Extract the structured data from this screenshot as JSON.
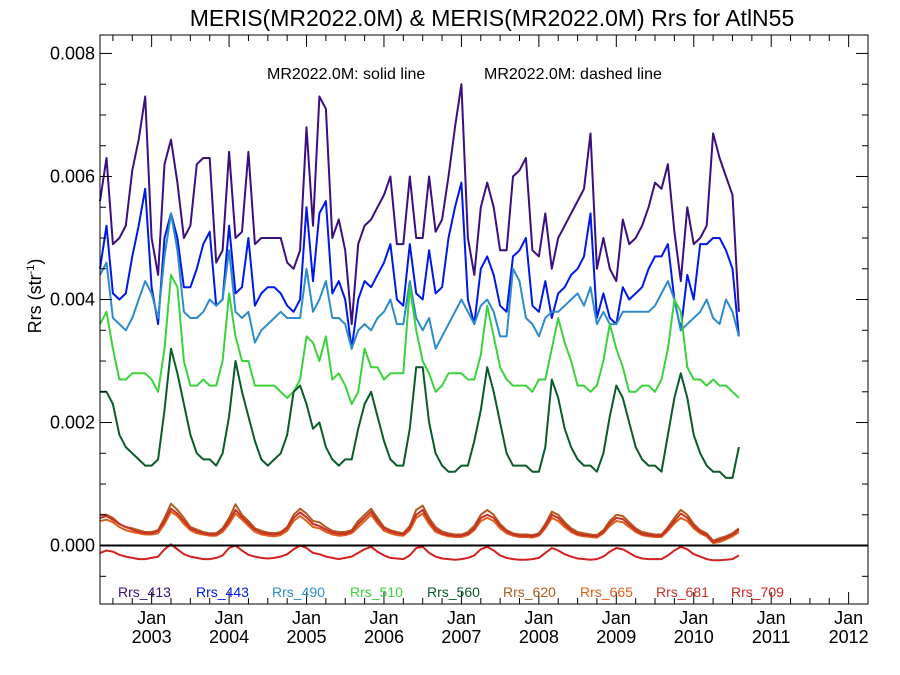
{
  "chart_data": {
    "type": "line",
    "title": "MERIS(MR2022.0M) & MERIS(MR2022.0M)  Rrs for AtlN55",
    "annotation_solid": "MR2022.0M: solid line",
    "annotation_dashed": "MR2022.0M: dashed line",
    "ylabel_main": "Rrs (str",
    "ylabel_sup": "-1",
    "ylabel_close": ")",
    "xlabel": "",
    "xlim": [
      "2002-05",
      "2012-04"
    ],
    "ylim": [
      -0.00095,
      0.0083
    ],
    "grid": false,
    "legend_position": "bottom",
    "x_tick_labels": [
      {
        "month": "Jan",
        "year": "2003",
        "date": "2003-01"
      },
      {
        "month": "Jan",
        "year": "2004",
        "date": "2004-01"
      },
      {
        "month": "Jan",
        "year": "2005",
        "date": "2005-01"
      },
      {
        "month": "Jan",
        "year": "2006",
        "date": "2006-01"
      },
      {
        "month": "Jan",
        "year": "2007",
        "date": "2007-01"
      },
      {
        "month": "Jan",
        "year": "2008",
        "date": "2008-01"
      },
      {
        "month": "Jan",
        "year": "2009",
        "date": "2009-01"
      },
      {
        "month": "Jan",
        "year": "2010",
        "date": "2010-01"
      },
      {
        "month": "Jan",
        "year": "2011",
        "date": "2011-01"
      },
      {
        "month": "Jan",
        "year": "2012",
        "date": "2012-01"
      }
    ],
    "y_tick_labels": [
      "0.000",
      "0.002",
      "0.004",
      "0.006",
      "0.008"
    ],
    "y_ticks": [
      0,
      0.002,
      0.004,
      0.006,
      0.008
    ],
    "x_start": "2002-05",
    "series": [
      {
        "name": "Rrs_413",
        "color": "#3b0f80",
        "values": [
          0.0056,
          0.0063,
          0.0049,
          0.005,
          0.0052,
          0.0061,
          0.0066,
          0.0073,
          0.005,
          0.0044,
          0.0062,
          0.0066,
          0.0059,
          0.005,
          0.0052,
          0.0062,
          0.0063,
          0.0063,
          0.0046,
          0.0048,
          0.0064,
          0.005,
          0.0051,
          0.0064,
          0.0049,
          0.005,
          0.005,
          0.005,
          0.005,
          0.0046,
          0.0045,
          0.0048,
          0.0068,
          0.0052,
          0.0073,
          0.0071,
          0.005,
          0.0053,
          0.0048,
          0.0036,
          0.0049,
          0.0052,
          0.0053,
          0.0055,
          0.0057,
          0.006,
          0.0049,
          0.0049,
          0.006,
          0.005,
          0.005,
          0.006,
          0.0051,
          0.0053,
          0.006,
          0.0068,
          0.0075,
          0.005,
          0.0044,
          0.0055,
          0.0059,
          0.0055,
          0.0048,
          0.0048,
          0.006,
          0.0061,
          0.0063,
          0.0048,
          0.0047,
          0.0054,
          0.0045,
          0.005,
          0.0052,
          0.0054,
          0.0056,
          0.0058,
          0.0067,
          0.0045,
          0.005,
          0.0045,
          0.0043,
          0.0053,
          0.0049,
          0.005,
          0.0052,
          0.0055,
          0.0059,
          0.0058,
          0.0062,
          0.0051,
          0.0043,
          0.0055,
          0.0049,
          0.005,
          0.0052,
          0.0067,
          0.0063,
          0.006,
          0.0057,
          0.0038
        ]
      },
      {
        "name": "Rrs_443",
        "color": "#0018e8",
        "values": [
          0.0045,
          0.0052,
          0.0041,
          0.004,
          0.0041,
          0.0047,
          0.0052,
          0.0058,
          0.0042,
          0.0036,
          0.005,
          0.0054,
          0.005,
          0.0042,
          0.0042,
          0.0045,
          0.0049,
          0.0051,
          0.0039,
          0.004,
          0.0052,
          0.0041,
          0.0042,
          0.005,
          0.0039,
          0.0041,
          0.0042,
          0.0042,
          0.0041,
          0.0039,
          0.0038,
          0.004,
          0.0055,
          0.0043,
          0.0054,
          0.0056,
          0.0041,
          0.0043,
          0.004,
          0.0032,
          0.004,
          0.0043,
          0.0042,
          0.0044,
          0.0046,
          0.0049,
          0.004,
          0.0039,
          0.0049,
          0.0041,
          0.004,
          0.0048,
          0.0041,
          0.0042,
          0.005,
          0.0055,
          0.0059,
          0.004,
          0.0036,
          0.0045,
          0.0047,
          0.0044,
          0.0039,
          0.0038,
          0.0047,
          0.0048,
          0.005,
          0.0039,
          0.0038,
          0.0043,
          0.0037,
          0.0041,
          0.0042,
          0.0044,
          0.0045,
          0.0047,
          0.0054,
          0.0037,
          0.0041,
          0.0037,
          0.0036,
          0.0042,
          0.004,
          0.0041,
          0.0042,
          0.0045,
          0.0047,
          0.0047,
          0.0049,
          0.004,
          0.0035,
          0.0044,
          0.004,
          0.0049,
          0.0049,
          0.005,
          0.005,
          0.0048,
          0.0045,
          0.0034
        ]
      },
      {
        "name": "Rrs_490",
        "color": "#2e8ccc",
        "values": [
          0.0044,
          0.0046,
          0.0037,
          0.0036,
          0.0035,
          0.0037,
          0.004,
          0.0043,
          0.0041,
          0.0037,
          0.0047,
          0.0054,
          0.0048,
          0.0038,
          0.0037,
          0.0037,
          0.0038,
          0.004,
          0.0039,
          0.004,
          0.0048,
          0.0038,
          0.0037,
          0.0038,
          0.0033,
          0.0035,
          0.0036,
          0.0037,
          0.0038,
          0.0037,
          0.0037,
          0.0037,
          0.0045,
          0.0038,
          0.004,
          0.0043,
          0.0037,
          0.0037,
          0.0036,
          0.0032,
          0.0035,
          0.0036,
          0.0035,
          0.0037,
          0.0038,
          0.004,
          0.0036,
          0.0036,
          0.0043,
          0.0037,
          0.0035,
          0.0037,
          0.0032,
          0.0034,
          0.0036,
          0.0038,
          0.004,
          0.0038,
          0.0036,
          0.0039,
          0.004,
          0.0038,
          0.0034,
          0.0034,
          0.0045,
          0.0043,
          0.0037,
          0.0036,
          0.0034,
          0.0037,
          0.0038,
          0.0038,
          0.0039,
          0.004,
          0.0041,
          0.0039,
          0.0042,
          0.0036,
          0.0038,
          0.0036,
          0.0036,
          0.0038,
          0.0038,
          0.0038,
          0.0038,
          0.0038,
          0.0039,
          0.0041,
          0.0043,
          0.004,
          0.0035,
          0.0036,
          0.0037,
          0.0038,
          0.004,
          0.0037,
          0.0036,
          0.004,
          0.0038,
          0.0034
        ]
      },
      {
        "name": "Rrs_510",
        "color": "#3cd23c",
        "values": [
          0.0036,
          0.0038,
          0.0032,
          0.0027,
          0.0027,
          0.0028,
          0.0028,
          0.0028,
          0.0027,
          0.0025,
          0.0032,
          0.0044,
          0.0042,
          0.003,
          0.0026,
          0.0026,
          0.0027,
          0.0026,
          0.0026,
          0.003,
          0.0041,
          0.0034,
          0.003,
          0.003,
          0.0026,
          0.0026,
          0.0026,
          0.0026,
          0.0025,
          0.0024,
          0.0025,
          0.0027,
          0.0034,
          0.0033,
          0.003,
          0.0034,
          0.0027,
          0.0028,
          0.0026,
          0.0023,
          0.0025,
          0.0032,
          0.0029,
          0.0029,
          0.0027,
          0.0028,
          0.0028,
          0.0028,
          0.0042,
          0.0035,
          0.003,
          0.0028,
          0.0025,
          0.0026,
          0.0028,
          0.0028,
          0.0028,
          0.0027,
          0.0027,
          0.0031,
          0.0039,
          0.0034,
          0.0029,
          0.0027,
          0.0026,
          0.0026,
          0.0026,
          0.0025,
          0.0027,
          0.0027,
          0.0032,
          0.0037,
          0.0033,
          0.003,
          0.0026,
          0.0026,
          0.0025,
          0.0026,
          0.003,
          0.0036,
          0.0032,
          0.0029,
          0.0025,
          0.0025,
          0.0026,
          0.0026,
          0.0025,
          0.0027,
          0.0032,
          0.004,
          0.0038,
          0.0029,
          0.0027,
          0.0027,
          0.0026,
          0.0027,
          0.0026,
          0.0026,
          0.0025,
          0.0024
        ]
      },
      {
        "name": "Rrs_560",
        "color": "#0a5a2a",
        "values": [
          0.0025,
          0.0025,
          0.0023,
          0.0018,
          0.0016,
          0.0015,
          0.0014,
          0.0013,
          0.0013,
          0.0014,
          0.0022,
          0.0032,
          0.0028,
          0.0023,
          0.0018,
          0.0015,
          0.0014,
          0.0014,
          0.0013,
          0.0015,
          0.0021,
          0.003,
          0.0025,
          0.0021,
          0.0017,
          0.0014,
          0.0013,
          0.0014,
          0.0015,
          0.0018,
          0.0025,
          0.0026,
          0.0023,
          0.0019,
          0.002,
          0.0016,
          0.0014,
          0.0013,
          0.0014,
          0.0014,
          0.0019,
          0.0023,
          0.0025,
          0.0021,
          0.0017,
          0.0014,
          0.0013,
          0.0013,
          0.0019,
          0.0029,
          0.0029,
          0.002,
          0.0015,
          0.0013,
          0.0012,
          0.0012,
          0.0013,
          0.0013,
          0.0017,
          0.0022,
          0.0029,
          0.0025,
          0.002,
          0.0015,
          0.0013,
          0.0013,
          0.0013,
          0.0012,
          0.0012,
          0.0016,
          0.0027,
          0.0024,
          0.0019,
          0.0016,
          0.0014,
          0.0013,
          0.0013,
          0.0012,
          0.0015,
          0.0021,
          0.0026,
          0.0024,
          0.002,
          0.0016,
          0.0014,
          0.0013,
          0.0013,
          0.0012,
          0.0018,
          0.0024,
          0.0028,
          0.0024,
          0.0018,
          0.0015,
          0.0013,
          0.0012,
          0.0012,
          0.0011,
          0.0011,
          0.0016
        ]
      },
      {
        "name": "Rrs_620",
        "color": "#b35a1f",
        "values": [
          0.0005,
          0.0005,
          0.00045,
          0.00035,
          0.0003,
          0.00028,
          0.00025,
          0.00022,
          0.00022,
          0.00025,
          0.00045,
          0.00068,
          0.00058,
          0.00045,
          0.0003,
          0.00026,
          0.00022,
          0.0002,
          0.0002,
          0.00028,
          0.00045,
          0.00067,
          0.0005,
          0.0004,
          0.00028,
          0.00024,
          0.00021,
          0.0002,
          0.00022,
          0.0003,
          0.0005,
          0.0006,
          0.00052,
          0.0004,
          0.00038,
          0.0003,
          0.00024,
          0.00022,
          0.00022,
          0.00025,
          0.0004,
          0.0005,
          0.0006,
          0.00045,
          0.0003,
          0.00025,
          0.00022,
          0.0002,
          0.00032,
          0.00058,
          0.00065,
          0.00045,
          0.0003,
          0.00023,
          0.0002,
          0.00018,
          0.00018,
          0.00022,
          0.00032,
          0.0005,
          0.00058,
          0.0005,
          0.00035,
          0.00025,
          0.0002,
          0.00018,
          0.00018,
          0.00017,
          0.0002,
          0.00035,
          0.00055,
          0.0005,
          0.00038,
          0.00028,
          0.00022,
          0.0002,
          0.00018,
          0.00017,
          0.00025,
          0.0004,
          0.0005,
          0.00048,
          0.00038,
          0.00028,
          0.00022,
          0.0002,
          0.00018,
          0.00018,
          0.0003,
          0.00045,
          0.00058,
          0.0005,
          0.00035,
          0.00025,
          0.0002,
          8e-05,
          0.00012,
          0.00015,
          0.0002,
          0.00028
        ]
      },
      {
        "name": "Rrs_665",
        "color": "#e0601a",
        "values": [
          0.0004,
          0.00042,
          0.00038,
          0.0003,
          0.00025,
          0.00022,
          0.0002,
          0.00018,
          0.00018,
          0.0002,
          0.00035,
          0.00055,
          0.00048,
          0.00035,
          0.00025,
          0.0002,
          0.00018,
          0.00016,
          0.00016,
          0.00022,
          0.00035,
          0.00052,
          0.00042,
          0.00032,
          0.00022,
          0.00018,
          0.00016,
          0.00015,
          0.00017,
          0.00024,
          0.0004,
          0.00048,
          0.0004,
          0.0003,
          0.00028,
          0.00022,
          0.00018,
          0.00016,
          0.00017,
          0.0002,
          0.0003,
          0.0004,
          0.0005,
          0.00036,
          0.00024,
          0.0002,
          0.00017,
          0.00016,
          0.00025,
          0.00045,
          0.00052,
          0.00035,
          0.00022,
          0.00018,
          0.00015,
          0.00014,
          0.00014,
          0.00017,
          0.00025,
          0.0004,
          0.00045,
          0.0004,
          0.00028,
          0.0002,
          0.00016,
          0.00014,
          0.00014,
          0.00013,
          0.00016,
          0.00028,
          0.00045,
          0.0004,
          0.0003,
          0.00022,
          0.00017,
          0.00015,
          0.00014,
          0.00013,
          0.0002,
          0.00032,
          0.0004,
          0.00038,
          0.0003,
          0.00022,
          0.00017,
          0.00015,
          0.00014,
          0.00014,
          0.00024,
          0.00036,
          0.00045,
          0.0004,
          0.00028,
          0.0002,
          0.00015,
          4e-05,
          6e-05,
          0.0001,
          0.00015,
          0.00022
        ]
      },
      {
        "name": "Rrs_681",
        "color": "#c83028",
        "values": [
          0.00045,
          0.00048,
          0.00042,
          0.00035,
          0.0003,
          0.00026,
          0.00022,
          0.0002,
          0.0002,
          0.00024,
          0.0004,
          0.0006,
          0.00052,
          0.0004,
          0.00028,
          0.00023,
          0.0002,
          0.00018,
          0.00018,
          0.00026,
          0.0004,
          0.00058,
          0.00046,
          0.00036,
          0.00026,
          0.00021,
          0.00019,
          0.00018,
          0.0002,
          0.00028,
          0.00045,
          0.00054,
          0.00046,
          0.00035,
          0.00032,
          0.00026,
          0.00021,
          0.00019,
          0.00019,
          0.00023,
          0.00035,
          0.00045,
          0.00055,
          0.0004,
          0.00028,
          0.00023,
          0.0002,
          0.00018,
          0.00029,
          0.0005,
          0.00058,
          0.0004,
          0.00026,
          0.0002,
          0.00017,
          0.00016,
          0.00016,
          0.00019,
          0.00028,
          0.00045,
          0.0005,
          0.00045,
          0.00032,
          0.00023,
          0.00018,
          0.00016,
          0.00016,
          0.00015,
          0.00018,
          0.00031,
          0.0005,
          0.00045,
          0.00034,
          0.00025,
          0.00019,
          0.00017,
          0.00016,
          0.00015,
          0.00022,
          0.00036,
          0.00045,
          0.00043,
          0.00034,
          0.00025,
          0.00019,
          0.00017,
          0.00016,
          0.00016,
          0.00027,
          0.0004,
          0.00052,
          0.00045,
          0.00032,
          0.00022,
          0.00017,
          6e-05,
          9e-05,
          0.00013,
          0.00018,
          0.00026
        ]
      },
      {
        "name": "Rrs_709",
        "color": "#d42020",
        "values": [
          -0.00012,
          -8e-05,
          -0.0001,
          -0.00015,
          -0.00018,
          -0.0002,
          -0.00022,
          -0.00022,
          -0.0002,
          -0.00018,
          -6e-05,
          2e-05,
          -6e-05,
          -0.00014,
          -0.00018,
          -0.0002,
          -0.00022,
          -0.00022,
          -0.0002,
          -0.00016,
          -4e-05,
          0.0,
          -8e-05,
          -0.00015,
          -0.00018,
          -0.0002,
          -0.00021,
          -0.0002,
          -0.00018,
          -0.00014,
          -6e-05,
          0.0,
          -4e-05,
          -0.00012,
          -0.00014,
          -0.00018,
          -0.0002,
          -0.00022,
          -0.0002,
          -0.00018,
          -0.00012,
          -6e-05,
          -2e-05,
          -0.0001,
          -0.00016,
          -0.0002,
          -0.00021,
          -0.00022,
          -0.00016,
          -4e-05,
          -2e-05,
          -0.00012,
          -0.00018,
          -0.00021,
          -0.00022,
          -0.00023,
          -0.00022,
          -0.0002,
          -0.00016,
          -6e-05,
          -2e-05,
          -8e-05,
          -0.00016,
          -0.0002,
          -0.00022,
          -0.00023,
          -0.00023,
          -0.00022,
          -0.0002,
          -0.00012,
          -4e-05,
          -8e-05,
          -0.00014,
          -0.00018,
          -0.00021,
          -0.00022,
          -0.00023,
          -0.00022,
          -0.00018,
          -0.0001,
          -4e-05,
          -6e-05,
          -0.00012,
          -0.00018,
          -0.00021,
          -0.00022,
          -0.00022,
          -0.00022,
          -0.00016,
          -8e-05,
          -2e-05,
          -6e-05,
          -0.00014,
          -0.00018,
          -0.00022,
          -0.00024,
          -0.00024,
          -0.00023,
          -0.00022,
          -0.00016
        ]
      }
    ]
  }
}
